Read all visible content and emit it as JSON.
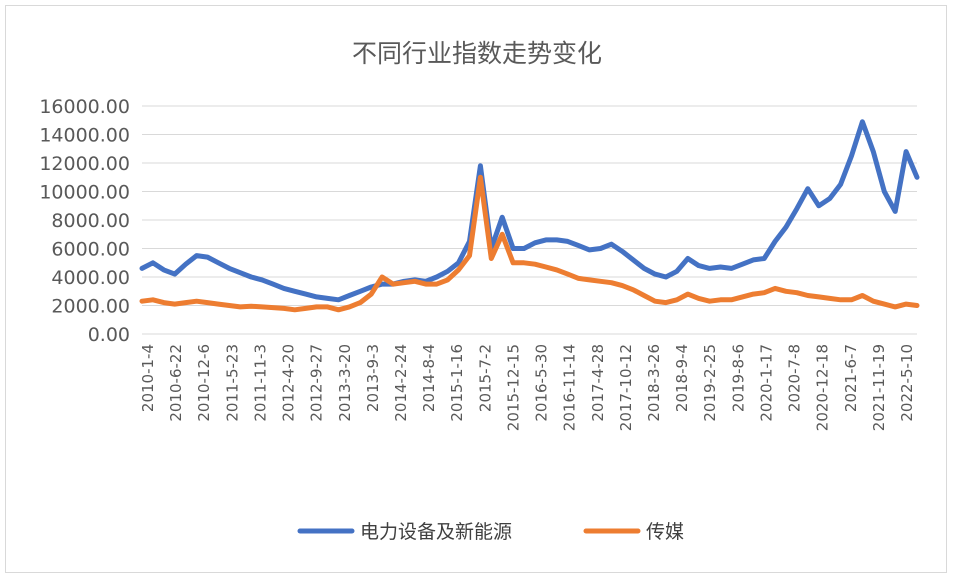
{
  "chart_data": {
    "type": "line",
    "title": "不同行业指数走势变化",
    "xlabel": "",
    "ylabel": "",
    "ylim": [
      0,
      16000
    ],
    "y_ticks": [
      "16000.00",
      "14000.00",
      "12000.00",
      "10000.00",
      "8000.00",
      "6000.00",
      "4000.00",
      "2000.00",
      "0.00"
    ],
    "y_tick_values": [
      16000,
      14000,
      12000,
      10000,
      8000,
      6000,
      4000,
      2000,
      0
    ],
    "x_ticks": [
      "2010-1-4",
      "2010-6-22",
      "2010-12-6",
      "2011-5-23",
      "2011-11-3",
      "2012-4-20",
      "2012-9-27",
      "2013-3-20",
      "2013-9-3",
      "2014-2-24",
      "2014-8-4",
      "2015-1-16",
      "2015-7-2",
      "2015-12-15",
      "2016-5-30",
      "2016-11-14",
      "2017-4-28",
      "2017-10-12",
      "2018-3-26",
      "2018-9-4",
      "2019-2-25",
      "2019-8-6",
      "2020-1-17",
      "2020-7-8",
      "2020-12-18",
      "2021-6-7",
      "2021-11-19",
      "2022-5-10"
    ],
    "grid": true,
    "legend": "bottom",
    "series": [
      {
        "name": "电力设备及新能源",
        "color": "#4472C4",
        "values": [
          4600,
          5000,
          4500,
          4200,
          4900,
          5500,
          5400,
          5000,
          4600,
          4300,
          4000,
          3800,
          3500,
          3200,
          3000,
          2800,
          2600,
          2500,
          2400,
          2700,
          3000,
          3300,
          3500,
          3500,
          3700,
          3800,
          3700,
          4000,
          4400,
          5000,
          6500,
          11800,
          6000,
          8200,
          6000,
          6000,
          6400,
          6600,
          6600,
          6500,
          6200,
          5900,
          6000,
          6300,
          5800,
          5200,
          4600,
          4200,
          4000,
          4400,
          5300,
          4800,
          4600,
          4700,
          4600,
          4900,
          5200,
          5300,
          6500,
          7500,
          8800,
          10200,
          9000,
          9500,
          10500,
          12500,
          14900,
          12800,
          10000,
          8600,
          12800,
          11000
        ]
      },
      {
        "name": "传媒",
        "color": "#ED7D31",
        "values": [
          2300,
          2400,
          2200,
          2100,
          2200,
          2300,
          2200,
          2100,
          2000,
          1900,
          1950,
          1900,
          1850,
          1800,
          1700,
          1800,
          1900,
          1900,
          1700,
          1900,
          2200,
          2800,
          4000,
          3500,
          3600,
          3700,
          3500,
          3500,
          3800,
          4500,
          5500,
          11000,
          5300,
          7000,
          5000,
          5000,
          4900,
          4700,
          4500,
          4200,
          3900,
          3800,
          3700,
          3600,
          3400,
          3100,
          2700,
          2300,
          2200,
          2400,
          2800,
          2500,
          2300,
          2400,
          2400,
          2600,
          2800,
          2900,
          3200,
          3000,
          2900,
          2700,
          2600,
          2500,
          2400,
          2400,
          2700,
          2300,
          2100,
          1900,
          2100,
          2000
        ]
      }
    ]
  }
}
